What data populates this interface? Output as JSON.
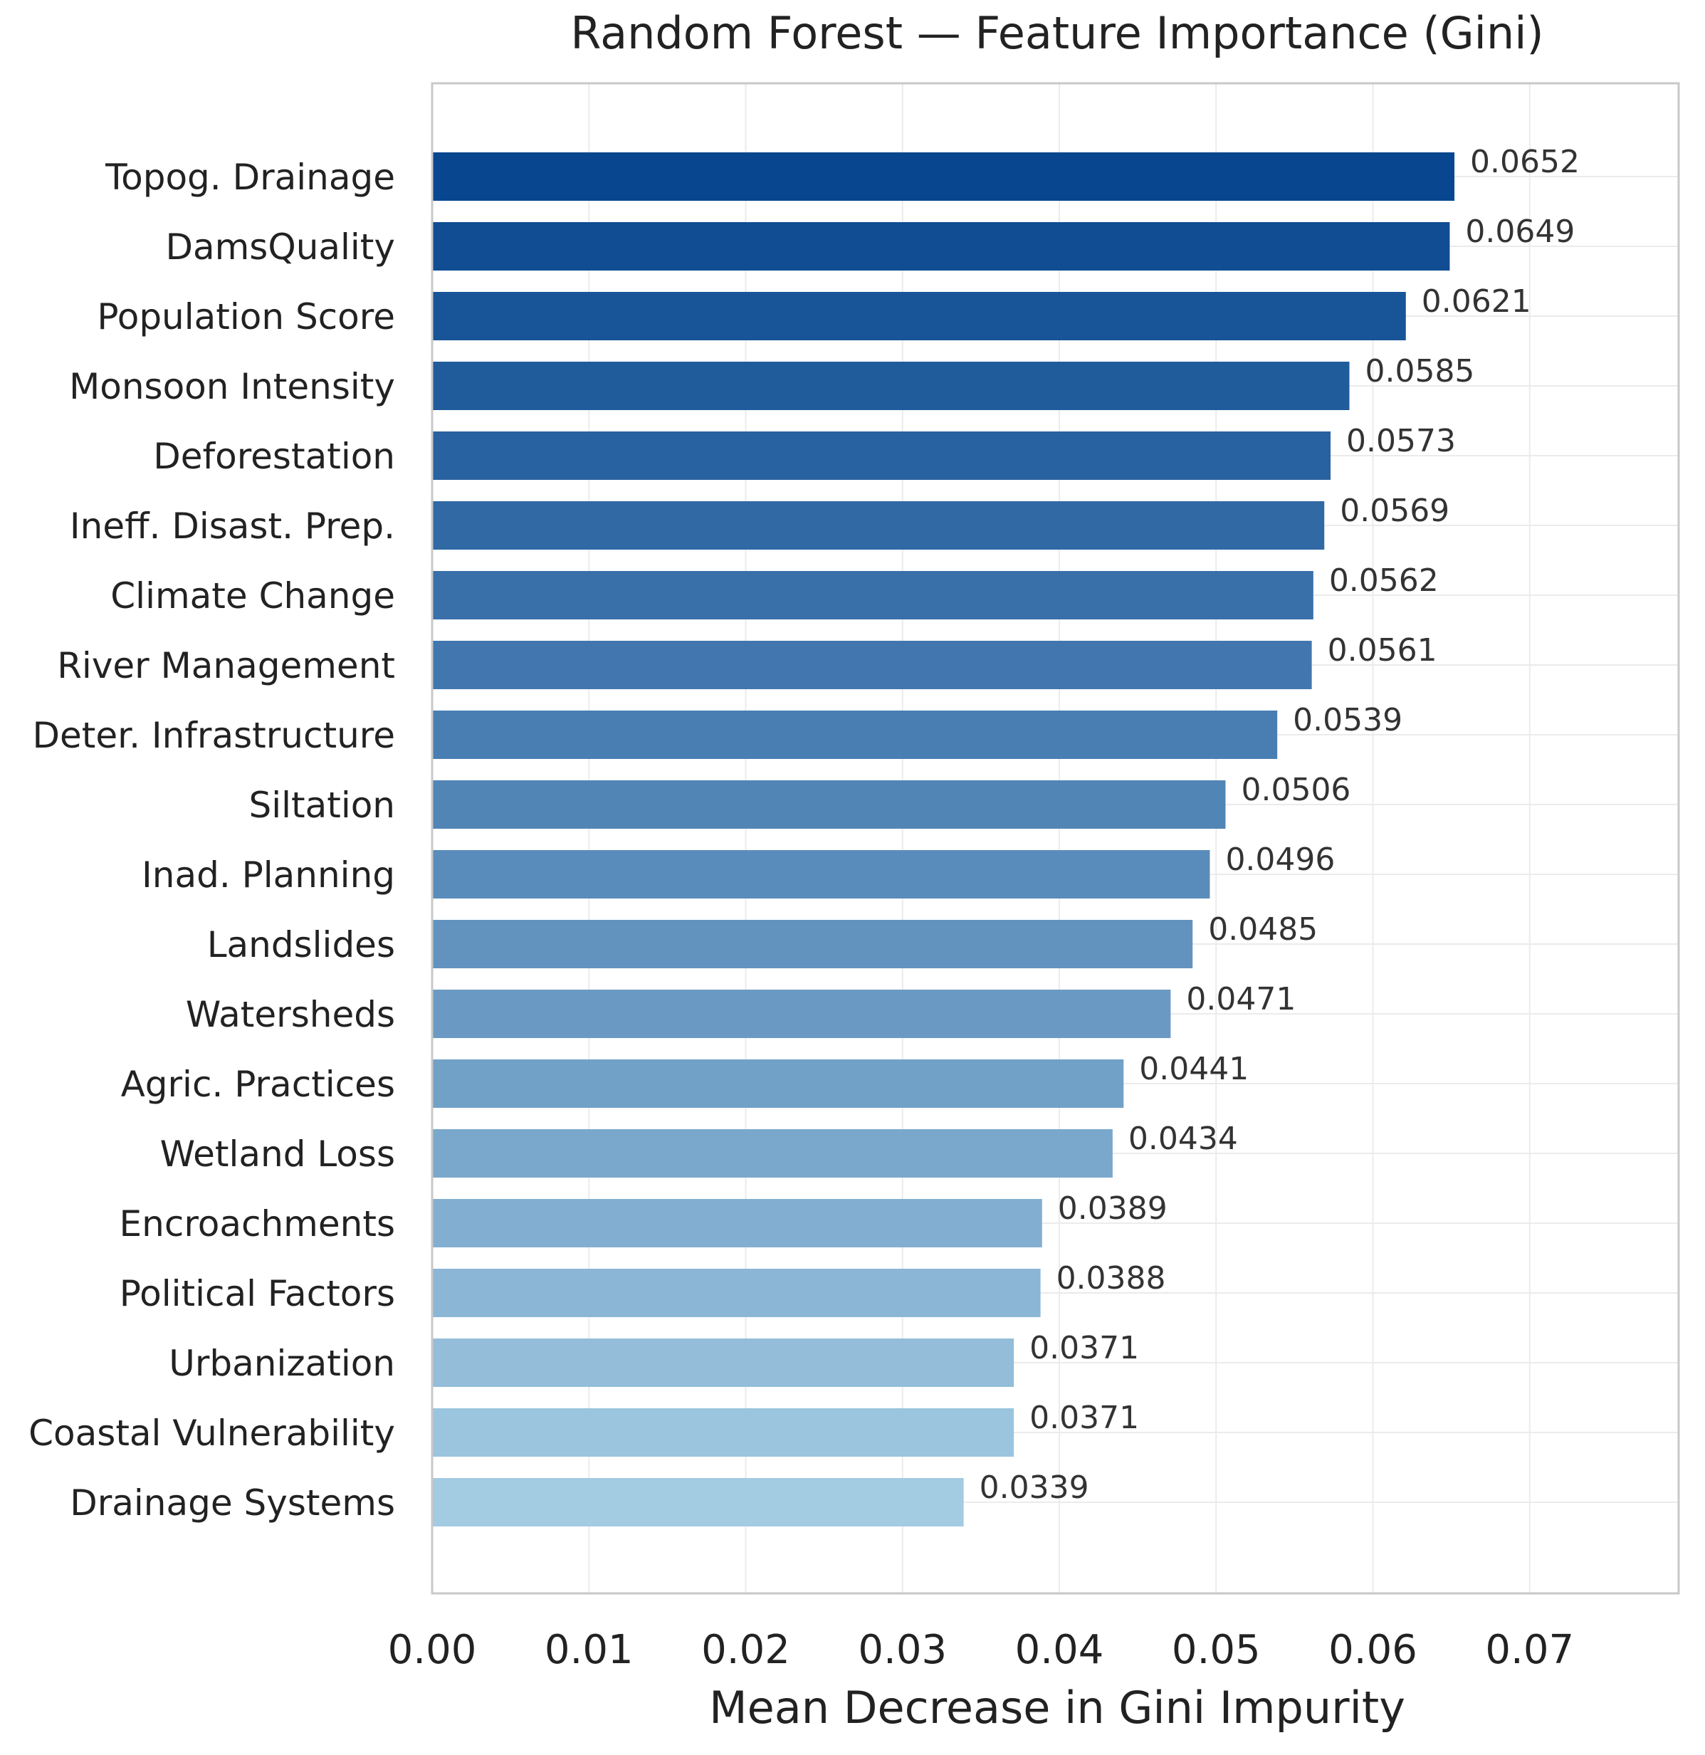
{
  "chart_data": {
    "type": "bar",
    "orientation": "horizontal",
    "title": "Random Forest — Feature Importance (Gini)",
    "xlabel": "Mean Decrease in Gini Impurity",
    "ylabel": "",
    "xlim": [
      0,
      0.0795
    ],
    "x_ticks": [
      0.0,
      0.01,
      0.02,
      0.03,
      0.04,
      0.05,
      0.06,
      0.07
    ],
    "x_tick_labels": [
      "0.00",
      "0.01",
      "0.02",
      "0.03",
      "0.04",
      "0.05",
      "0.06",
      "0.07"
    ],
    "grid": true,
    "colormap": "Blues",
    "colors": {
      "darkest": "#08468f",
      "lightest": "#a3cbe2",
      "frame": "#c8c8c8",
      "grid": "#ebebeb",
      "text": "#222222",
      "value_label": "#333333"
    },
    "categories": [
      "Topog. Drainage",
      "DamsQuality",
      "Population Score",
      "Monsoon Intensity",
      "Deforestation",
      "Ineff. Disast. Prep.",
      "Climate Change",
      "River Management",
      "Deter. Infrastructure",
      "Siltation",
      "Inad. Planning",
      "Landslides",
      "Watersheds",
      "Agric. Practices",
      "Wetland Loss",
      "Encroachments",
      "Political Factors",
      "Urbanization",
      "Coastal Vulnerability",
      "Drainage Systems"
    ],
    "values": [
      0.0652,
      0.0649,
      0.0621,
      0.0585,
      0.0573,
      0.0569,
      0.0562,
      0.0561,
      0.0539,
      0.0506,
      0.0496,
      0.0485,
      0.0471,
      0.0441,
      0.0434,
      0.0389,
      0.0388,
      0.0371,
      0.0371,
      0.0339
    ],
    "value_labels": [
      "0.0652",
      "0.0649",
      "0.0621",
      "0.0585",
      "0.0573",
      "0.0569",
      "0.0562",
      "0.0561",
      "0.0539",
      "0.0506",
      "0.0496",
      "0.0485",
      "0.0471",
      "0.0441",
      "0.0434",
      "0.0389",
      "0.0388",
      "0.0371",
      "0.0371",
      "0.0339"
    ]
  }
}
